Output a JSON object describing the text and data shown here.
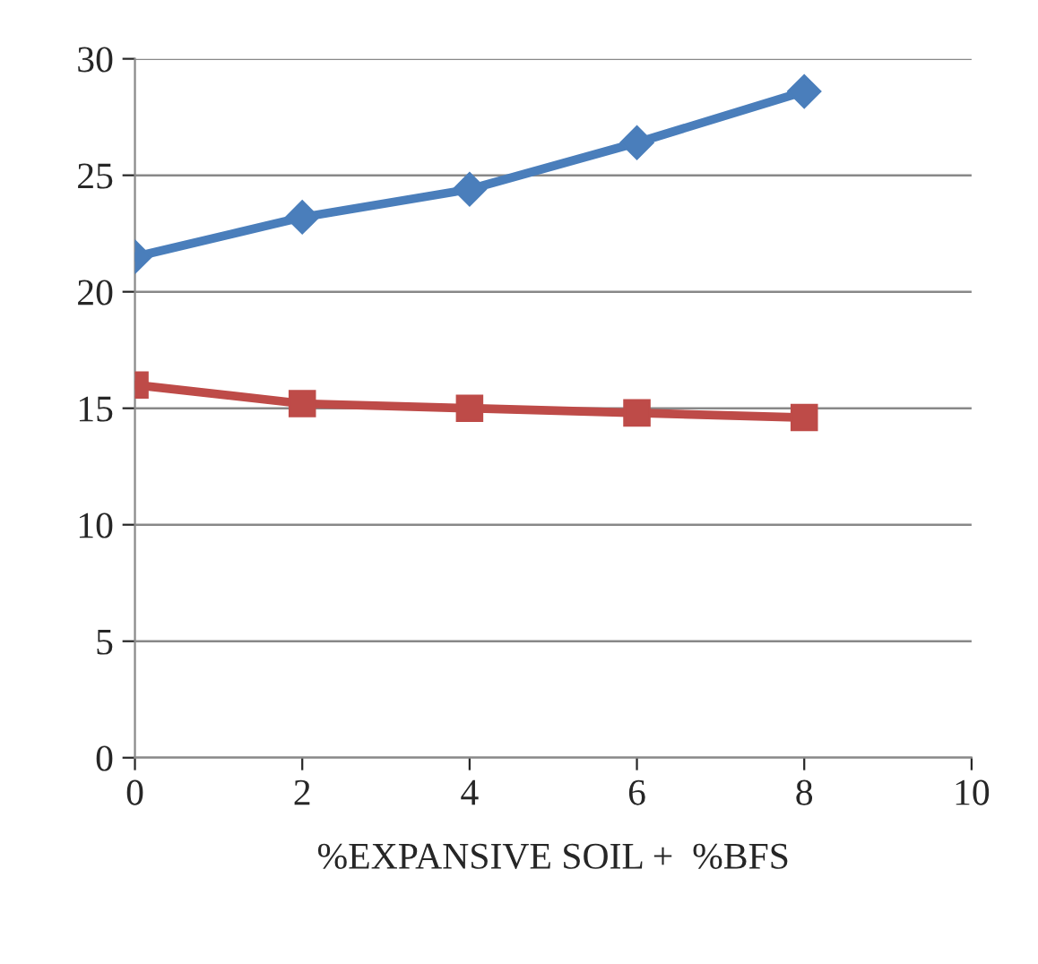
{
  "chart_data": {
    "type": "line",
    "xlabel": "%EXPANSIVE SOIL +  %BFS",
    "x": [
      0,
      2,
      4,
      6,
      8
    ],
    "series": [
      {
        "color": "#4a7ebb",
        "values": [
          21.5,
          23.2,
          24.4,
          26.4,
          28.6
        ],
        "marker": "diamond"
      },
      {
        "color": "#be4b48",
        "values": [
          16.0,
          15.2,
          15.0,
          14.8,
          14.6
        ],
        "marker": "square"
      }
    ],
    "xlim": [
      0,
      10
    ],
    "xticks": [
      0,
      2,
      4,
      6,
      8,
      10
    ],
    "ylim": [
      0,
      30
    ],
    "yticks": [
      0,
      5,
      10,
      15,
      20,
      25,
      30
    ],
    "grid": "y",
    "line_style": "solid"
  }
}
